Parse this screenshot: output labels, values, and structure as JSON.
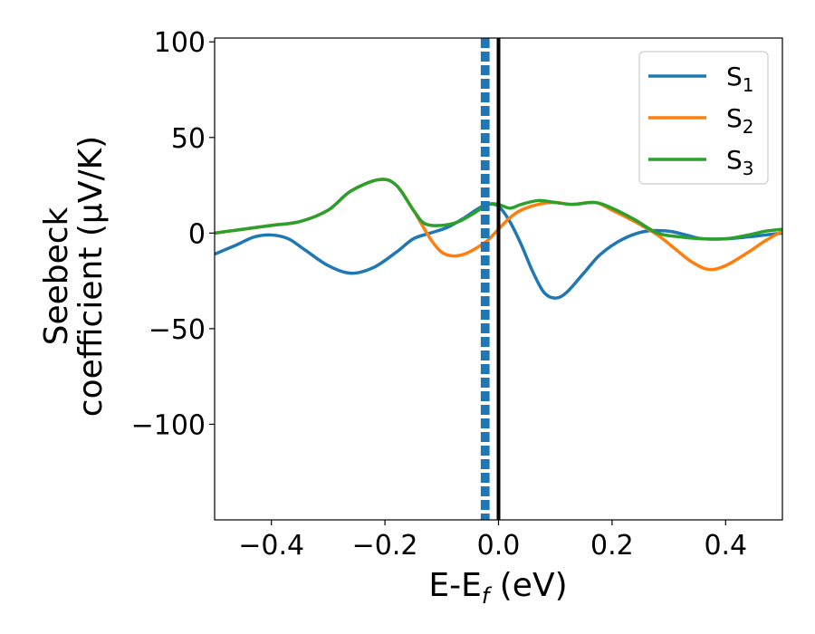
{
  "chart_data": {
    "type": "line",
    "xlabel": "E-E",
    "xlabel_sub": "f",
    "xlabel_unit": " (eV)",
    "ylabel_line1": "Seebeck",
    "ylabel_line2": "coefficient  (μV/K)",
    "xlim": [
      -0.5,
      0.5
    ],
    "ylim": [
      -150,
      102
    ],
    "xticks": [
      -0.4,
      -0.2,
      0.0,
      0.2,
      0.4
    ],
    "xtick_labels": [
      "−0.4",
      "−0.2",
      "0.0",
      "0.2",
      "0.4"
    ],
    "yticks": [
      100,
      50,
      0,
      -50,
      -100
    ],
    "ytick_labels": [
      "100",
      "50",
      "0",
      "−50",
      "−100"
    ],
    "legend_position": "top-right",
    "vertical_lines": [
      {
        "x": 0.0,
        "style": "solid",
        "color": "#000000"
      },
      {
        "x": -0.0285,
        "style": "dashed",
        "color": "#1f77b4"
      },
      {
        "x": -0.0235,
        "style": "dashed",
        "color": "#1f77b4"
      },
      {
        "x": -0.0185,
        "style": "dashed",
        "color": "#1f77b4"
      }
    ],
    "series": [
      {
        "name": "S",
        "sub": "1",
        "color": "#1f77b4",
        "points": [
          [
            -0.5,
            -11
          ],
          [
            -0.46,
            -6
          ],
          [
            -0.43,
            -2
          ],
          [
            -0.4,
            -1
          ],
          [
            -0.37,
            -3
          ],
          [
            -0.34,
            -9
          ],
          [
            -0.3,
            -17
          ],
          [
            -0.26,
            -21
          ],
          [
            -0.22,
            -18
          ],
          [
            -0.18,
            -10
          ],
          [
            -0.15,
            -3
          ],
          [
            -0.12,
            0
          ],
          [
            -0.09,
            3
          ],
          [
            -0.06,
            8
          ],
          [
            -0.04,
            12
          ],
          [
            -0.02,
            15
          ],
          [
            0.0,
            14
          ],
          [
            0.02,
            6
          ],
          [
            0.04,
            -6
          ],
          [
            0.06,
            -20
          ],
          [
            0.08,
            -31
          ],
          [
            0.1,
            -34
          ],
          [
            0.12,
            -31
          ],
          [
            0.15,
            -21
          ],
          [
            0.18,
            -11
          ],
          [
            0.22,
            -3
          ],
          [
            0.26,
            1
          ],
          [
            0.3,
            1
          ],
          [
            0.33,
            -1
          ],
          [
            0.36,
            -3
          ],
          [
            0.4,
            -3
          ],
          [
            0.44,
            -2
          ],
          [
            0.47,
            -1
          ],
          [
            0.5,
            0
          ]
        ]
      },
      {
        "name": "S",
        "sub": "2",
        "color": "#ff7f0e",
        "points": [
          [
            -0.5,
            0
          ],
          [
            -0.45,
            2
          ],
          [
            -0.4,
            4
          ],
          [
            -0.35,
            6
          ],
          [
            -0.3,
            12
          ],
          [
            -0.26,
            22
          ],
          [
            -0.21,
            28
          ],
          [
            -0.18,
            25
          ],
          [
            -0.15,
            12
          ],
          [
            -0.12,
            -3
          ],
          [
            -0.1,
            -10
          ],
          [
            -0.08,
            -12
          ],
          [
            -0.06,
            -11
          ],
          [
            -0.04,
            -8
          ],
          [
            -0.02,
            -4
          ],
          [
            0.0,
            2
          ],
          [
            0.02,
            8
          ],
          [
            0.04,
            12
          ],
          [
            0.07,
            15
          ],
          [
            0.1,
            16
          ],
          [
            0.13,
            15
          ],
          [
            0.17,
            16
          ],
          [
            0.2,
            12
          ],
          [
            0.24,
            6
          ],
          [
            0.28,
            -1
          ],
          [
            0.31,
            -8
          ],
          [
            0.34,
            -15
          ],
          [
            0.37,
            -19
          ],
          [
            0.4,
            -17
          ],
          [
            0.44,
            -10
          ],
          [
            0.47,
            -4
          ],
          [
            0.5,
            1
          ]
        ]
      },
      {
        "name": "S",
        "sub": "3",
        "color": "#2ca02c",
        "points": [
          [
            -0.5,
            0
          ],
          [
            -0.45,
            2
          ],
          [
            -0.4,
            4
          ],
          [
            -0.35,
            6
          ],
          [
            -0.3,
            12
          ],
          [
            -0.26,
            22
          ],
          [
            -0.21,
            28
          ],
          [
            -0.18,
            25
          ],
          [
            -0.15,
            12
          ],
          [
            -0.13,
            5
          ],
          [
            -0.1,
            4
          ],
          [
            -0.07,
            6
          ],
          [
            -0.04,
            11
          ],
          [
            -0.02,
            15
          ],
          [
            0.0,
            15
          ],
          [
            0.02,
            13
          ],
          [
            0.04,
            15
          ],
          [
            0.07,
            17
          ],
          [
            0.1,
            16
          ],
          [
            0.13,
            15
          ],
          [
            0.17,
            16
          ],
          [
            0.2,
            13
          ],
          [
            0.24,
            7
          ],
          [
            0.28,
            0
          ],
          [
            0.32,
            -2
          ],
          [
            0.36,
            -3
          ],
          [
            0.4,
            -3
          ],
          [
            0.44,
            -1
          ],
          [
            0.47,
            1
          ],
          [
            0.5,
            2
          ]
        ]
      }
    ]
  },
  "colors": {
    "axis": "#000000",
    "legend_border": "#cccccc"
  }
}
